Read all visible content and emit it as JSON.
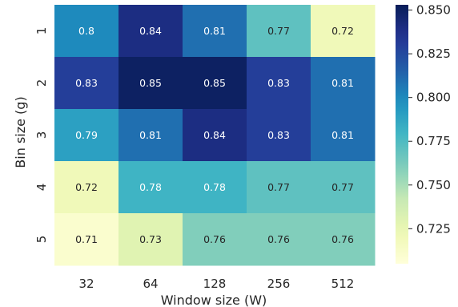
{
  "chart_data": {
    "type": "heatmap",
    "title": "",
    "xlabel": "Window size (W)",
    "ylabel": "Bin size (g)",
    "x_categories": [
      "32",
      "64",
      "128",
      "256",
      "512"
    ],
    "y_categories": [
      "1",
      "2",
      "3",
      "4",
      "5"
    ],
    "values": [
      [
        0.8,
        0.84,
        0.81,
        0.77,
        0.72
      ],
      [
        0.83,
        0.85,
        0.85,
        0.83,
        0.81
      ],
      [
        0.79,
        0.81,
        0.84,
        0.83,
        0.81
      ],
      [
        0.72,
        0.78,
        0.78,
        0.77,
        0.77
      ],
      [
        0.71,
        0.73,
        0.76,
        0.76,
        0.76
      ]
    ],
    "cell_labels": [
      [
        "0.8",
        "0.84",
        "0.81",
        "0.77",
        "0.72"
      ],
      [
        "0.83",
        "0.85",
        "0.85",
        "0.83",
        "0.81"
      ],
      [
        "0.79",
        "0.81",
        "0.84",
        "0.83",
        "0.81"
      ],
      [
        "0.72",
        "0.78",
        "0.78",
        "0.77",
        "0.77"
      ],
      [
        "0.71",
        "0.73",
        "0.76",
        "0.76",
        "0.76"
      ]
    ],
    "colormap": "YlGnBu",
    "colorbar": {
      "min": 0.705,
      "max": 0.853,
      "ticks": [
        0.725,
        0.75,
        0.775,
        0.8,
        0.825,
        0.85
      ],
      "tick_labels": [
        "0.725",
        "0.750",
        "0.775",
        "0.800",
        "0.825",
        "0.850"
      ]
    },
    "grid": false,
    "legend": "colorbar-right"
  }
}
